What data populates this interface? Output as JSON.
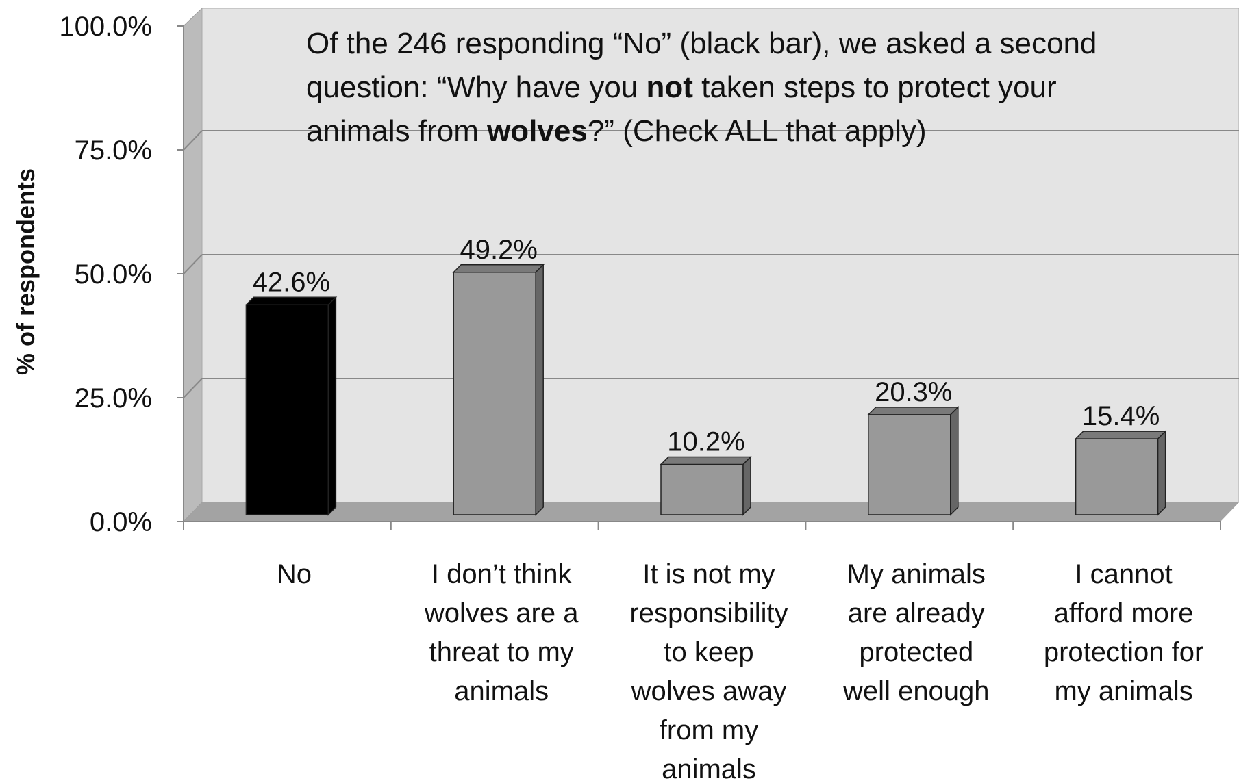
{
  "chart_data": {
    "type": "bar",
    "ylabel": "% of respondents",
    "ylim": [
      0,
      100
    ],
    "yticks": [
      "0.0%",
      "25.0%",
      "50.0%",
      "75.0%",
      "100.0%"
    ],
    "grid": true,
    "categories": [
      [
        "No"
      ],
      [
        "I don’t think",
        "wolves are a",
        "threat to my",
        "animals"
      ],
      [
        "It is not my",
        "responsibility",
        "to keep",
        "wolves away",
        "from my",
        "animals"
      ],
      [
        "My animals",
        "are already",
        "protected",
        "well enough"
      ],
      [
        "I cannot",
        "afford more",
        "protection for",
        "my animals"
      ]
    ],
    "values": [
      42.6,
      49.2,
      10.2,
      20.3,
      15.4
    ],
    "data_labels": [
      "42.6%",
      "49.2%",
      "10.2%",
      "20.3%",
      "15.4%"
    ],
    "bar_colors": [
      "#000000",
      "#999999",
      "#999999",
      "#999999",
      "#999999"
    ],
    "annotation": {
      "line1": "Of the 246 responding “No” (black bar), we asked a second",
      "line2_a": "question: “Why have you ",
      "line2_bold": "not",
      "line2_b": " taken steps to protect your",
      "line3_a": "animals from ",
      "line3_bold": "wolves",
      "line3_b": "?” (Check ALL that apply)"
    },
    "colors": {
      "wall": "#e4e4e4",
      "side_wall": "#bbbbbb",
      "floor": "#a3a3a3",
      "gridline": "#888888"
    }
  }
}
